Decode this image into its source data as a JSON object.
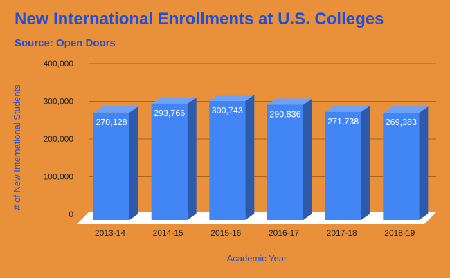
{
  "title": "New International Enrollments at U.S. Colleges",
  "subtitle": "Source: Open Doors",
  "chart_data": {
    "type": "bar",
    "title": "New International Enrollments at U.S. Colleges",
    "subtitle": "Source: Open Doors",
    "categories": [
      "2013-14",
      "2014-15",
      "2015-16",
      "2016-17",
      "2017-18",
      "2018-19"
    ],
    "values": [
      270128,
      293766,
      300743,
      290836,
      271738,
      269383
    ],
    "value_labels": [
      "270,128",
      "293,766",
      "300,743",
      "290,836",
      "271,738",
      "269,383"
    ],
    "xlabel": "Academic Year",
    "ylabel": "# of New International Students",
    "ylim": [
      0,
      400000
    ],
    "yticks": [
      0,
      100000,
      200000,
      300000,
      400000
    ],
    "ytick_labels": [
      "0",
      "100,000",
      "200,000",
      "300,000",
      "400,000"
    ],
    "grid": true,
    "colors": {
      "background": "#E8913A",
      "bar_front": "#4285F4",
      "bar_side": "#2D5AAB",
      "bar_top": "#6FA1F7",
      "gridline": "#A8641F",
      "floor": "#FFFFFF",
      "title": "#1F4FD8"
    }
  }
}
